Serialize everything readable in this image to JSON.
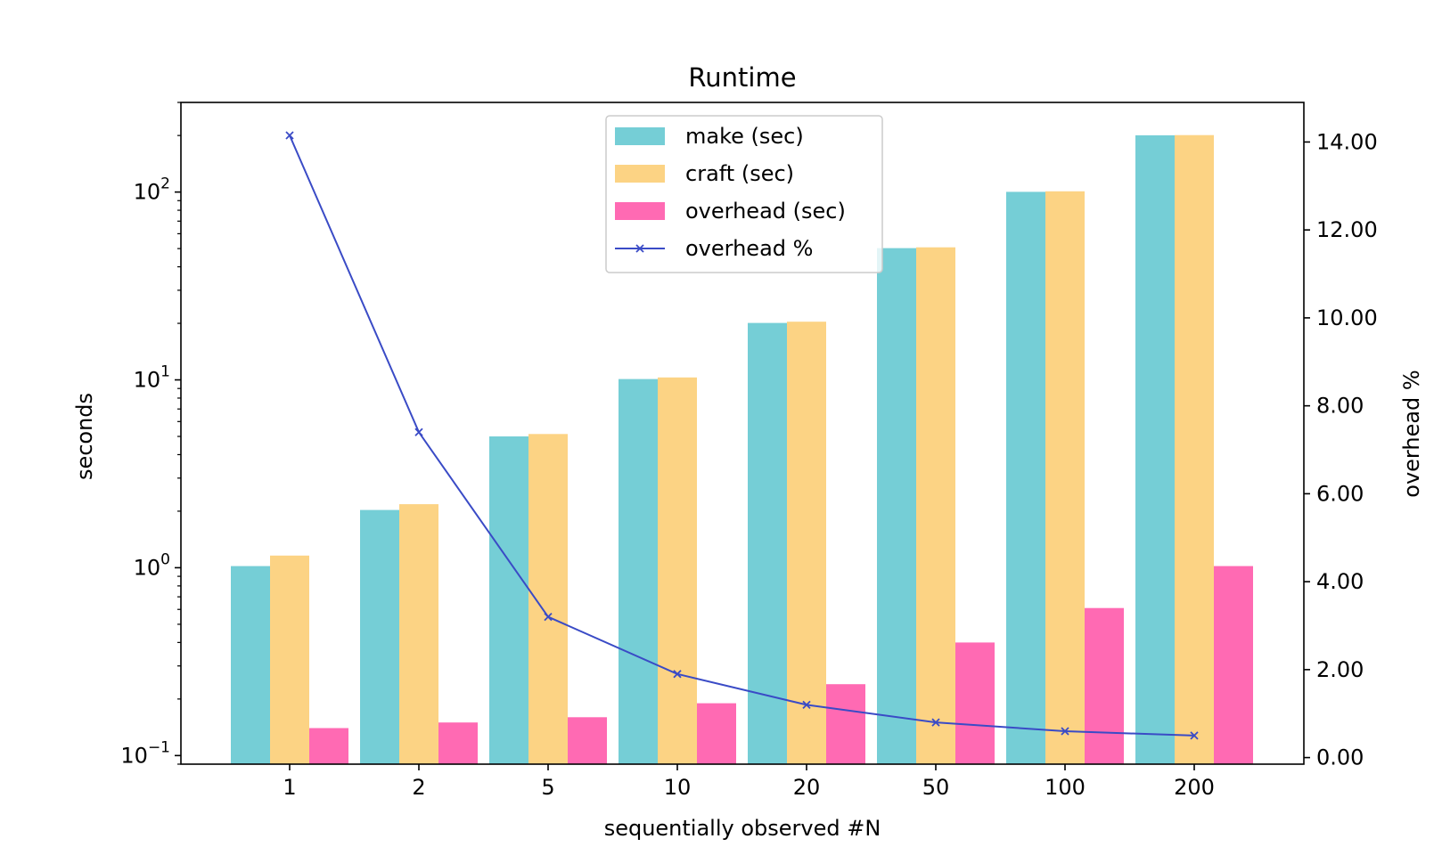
{
  "chart_data": {
    "type": "bar",
    "title": "Runtime",
    "xlabel": "sequentially observed #N",
    "ylabel": "seconds",
    "y2label": "overhead %",
    "categories": [
      "1",
      "2",
      "5",
      "10",
      "20",
      "50",
      "100",
      "200"
    ],
    "yscale": "log",
    "ylim": [
      0.09,
      300
    ],
    "yticks": [
      {
        "base": "10",
        "exp": "−1",
        "value": 0.1
      },
      {
        "base": "10",
        "exp": "0",
        "value": 1
      },
      {
        "base": "10",
        "exp": "1",
        "value": 10
      },
      {
        "base": "10",
        "exp": "2",
        "value": 100
      }
    ],
    "y2lim": [
      -0.15,
      14.9
    ],
    "y2ticks": [
      "0.00",
      "2.00",
      "4.00",
      "6.00",
      "8.00",
      "10.00",
      "12.00",
      "14.00"
    ],
    "series": [
      {
        "name": "make (sec)",
        "kind": "bar",
        "axis": "left",
        "color": "#75ced6",
        "values": [
          1.02,
          2.03,
          5.0,
          10.1,
          20.1,
          50.3,
          100.2,
          200.5
        ]
      },
      {
        "name": "craft (sec)",
        "kind": "bar",
        "axis": "left",
        "color": "#fcd384",
        "values": [
          1.16,
          2.18,
          5.15,
          10.3,
          20.4,
          50.8,
          100.9,
          201.0
        ]
      },
      {
        "name": "overhead (sec)",
        "kind": "bar",
        "axis": "left",
        "color": "#ff6ab3",
        "values": [
          0.14,
          0.15,
          0.16,
          0.19,
          0.24,
          0.4,
          0.61,
          1.02
        ]
      },
      {
        "name": "overhead %",
        "kind": "line",
        "axis": "right",
        "color": "#3a4bc6",
        "marker": "x",
        "values": [
          14.15,
          7.4,
          3.2,
          1.9,
          1.2,
          0.8,
          0.6,
          0.5
        ]
      }
    ],
    "legend": {
      "position": "upper-center"
    },
    "grid": false
  }
}
